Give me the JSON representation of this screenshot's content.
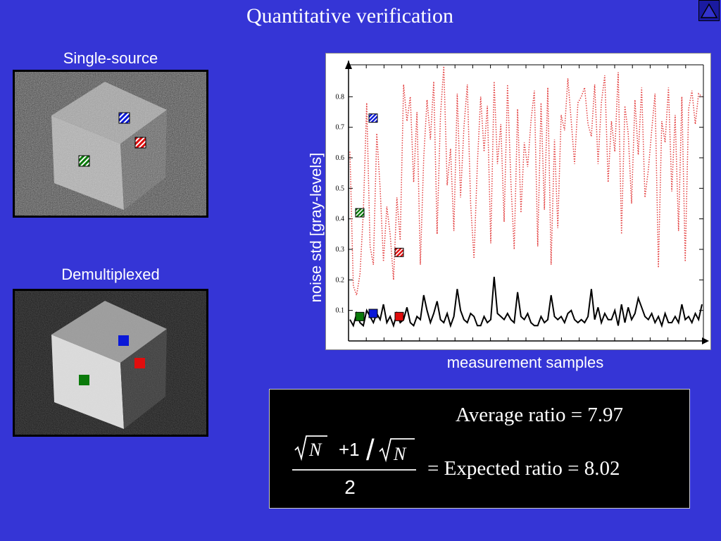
{
  "slide": {
    "title": "Quantitative verification",
    "nav_icon": "triangle-up-icon"
  },
  "panels": {
    "single_source_caption": "Single-source",
    "demultiplexed_caption": "Demultiplexed"
  },
  "colors": {
    "background": "#3535d6",
    "green_patch": "#0a7a0a",
    "blue_patch": "#0a18d8",
    "red_patch": "#e00d0d"
  },
  "chart_data": {
    "type": "line",
    "xlabel": "measurement  samples",
    "ylabel": "noise  std   [gray-levels]",
    "ylim": [
      0,
      0.9
    ],
    "yticks": [
      "0.1",
      "0.2",
      "0.3",
      "0.4",
      "0.5",
      "0.6",
      "0.7",
      "0.8"
    ],
    "series": [
      {
        "style": "dotted-red",
        "values": [
          0.62,
          0.18,
          0.15,
          0.22,
          0.42,
          0.78,
          0.31,
          0.25,
          0.68,
          0.5,
          0.26,
          0.44,
          0.35,
          0.2,
          0.47,
          0.33,
          0.84,
          0.72,
          0.8,
          0.52,
          0.75,
          0.25,
          0.6,
          0.79,
          0.66,
          0.85,
          0.35,
          0.74,
          0.9,
          0.51,
          0.63,
          0.36,
          0.81,
          0.47,
          0.7,
          0.84,
          0.45,
          0.27,
          0.58,
          0.8,
          0.62,
          0.77,
          0.32,
          0.85,
          0.58,
          0.71,
          0.39,
          0.84,
          0.52,
          0.3,
          0.76,
          0.42,
          0.65,
          0.57,
          0.72,
          0.82,
          0.31,
          0.78,
          0.43,
          0.83,
          0.25,
          0.66,
          0.37,
          0.74,
          0.69,
          0.86,
          0.72,
          0.58,
          0.78,
          0.8,
          0.83,
          0.71,
          0.67,
          0.84,
          0.58,
          0.78,
          0.87,
          0.52,
          0.72,
          0.62,
          0.88,
          0.35,
          0.77,
          0.68,
          0.45,
          0.79,
          0.61,
          0.83,
          0.47,
          0.56,
          0.69,
          0.81,
          0.24,
          0.72,
          0.65,
          0.83,
          0.49,
          0.74,
          0.36,
          0.8,
          0.26,
          0.76,
          0.82,
          0.71,
          0.81,
          0.8
        ]
      },
      {
        "style": "solid-black",
        "values": [
          0.07,
          0.05,
          0.09,
          0.06,
          0.05,
          0.1,
          0.08,
          0.06,
          0.09,
          0.07,
          0.12,
          0.06,
          0.08,
          0.05,
          0.09,
          0.06,
          0.07,
          0.11,
          0.06,
          0.05,
          0.08,
          0.07,
          0.15,
          0.1,
          0.06,
          0.09,
          0.13,
          0.07,
          0.06,
          0.09,
          0.05,
          0.08,
          0.17,
          0.1,
          0.07,
          0.06,
          0.09,
          0.08,
          0.05,
          0.05,
          0.08,
          0.06,
          0.07,
          0.21,
          0.09,
          0.08,
          0.07,
          0.09,
          0.07,
          0.06,
          0.16,
          0.08,
          0.07,
          0.09,
          0.06,
          0.05,
          0.05,
          0.08,
          0.06,
          0.07,
          0.15,
          0.08,
          0.07,
          0.08,
          0.06,
          0.09,
          0.1,
          0.07,
          0.06,
          0.07,
          0.06,
          0.08,
          0.17,
          0.07,
          0.11,
          0.06,
          0.09,
          0.07,
          0.07,
          0.1,
          0.05,
          0.12,
          0.06,
          0.11,
          0.07,
          0.09,
          0.14,
          0.11,
          0.08,
          0.07,
          0.09,
          0.06,
          0.08,
          0.05,
          0.09,
          0.06,
          0.06,
          0.08,
          0.06,
          0.12,
          0.07,
          0.08,
          0.06,
          0.09,
          0.07,
          0.12
        ]
      }
    ],
    "markers": [
      {
        "color": "green",
        "pattern": "hatched",
        "y": 0.42
      },
      {
        "color": "blue",
        "pattern": "hatched",
        "y": 0.73
      },
      {
        "color": "red",
        "pattern": "hatched",
        "y": 0.29
      },
      {
        "color": "green",
        "pattern": "solid",
        "y": 0.08
      },
      {
        "color": "blue",
        "pattern": "solid",
        "y": 0.09
      },
      {
        "color": "red",
        "pattern": "solid",
        "y": 0.08
      }
    ]
  },
  "formula": {
    "average_text": "Average ratio = 7.97",
    "numerator_sqrt_var": "N",
    "numerator_plus": "+1",
    "slash": "/",
    "denominator_sqrt_var": "N",
    "fraction_denominator": "2",
    "expected_text": "= Expected ratio = 8.02"
  }
}
